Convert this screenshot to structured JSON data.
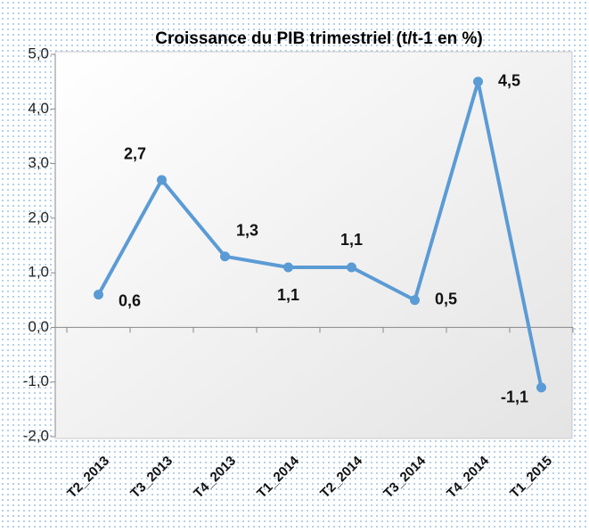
{
  "chart_data": {
    "type": "line",
    "title": "Croissance du PIB trimestriel (t/t-1 en %)",
    "categories": [
      "T2_2013",
      "T3_2013",
      "T4_2013",
      "T1_2014",
      "T2_2014",
      "T3_2014",
      "T4_2014",
      "T1_2015"
    ],
    "values": [
      0.6,
      2.7,
      1.3,
      1.1,
      1.1,
      0.5,
      4.5,
      -1.1
    ],
    "value_labels": [
      "0,6",
      "2,7",
      "1,3",
      "1,1",
      "1,1",
      "0,5",
      "4,5",
      "-1,1"
    ],
    "color": "#5b9bd5",
    "ylim": [
      -2,
      5
    ],
    "yticks": [
      {
        "value": -2,
        "label": "-2,0"
      },
      {
        "value": -1,
        "label": "-1,0"
      },
      {
        "value": 0,
        "label": "0,0"
      },
      {
        "value": 1,
        "label": "1,0"
      },
      {
        "value": 2,
        "label": "2,0"
      },
      {
        "value": 3,
        "label": "3,0"
      },
      {
        "value": 4,
        "label": "4,0"
      },
      {
        "value": 5,
        "label": "5,0"
      }
    ]
  }
}
